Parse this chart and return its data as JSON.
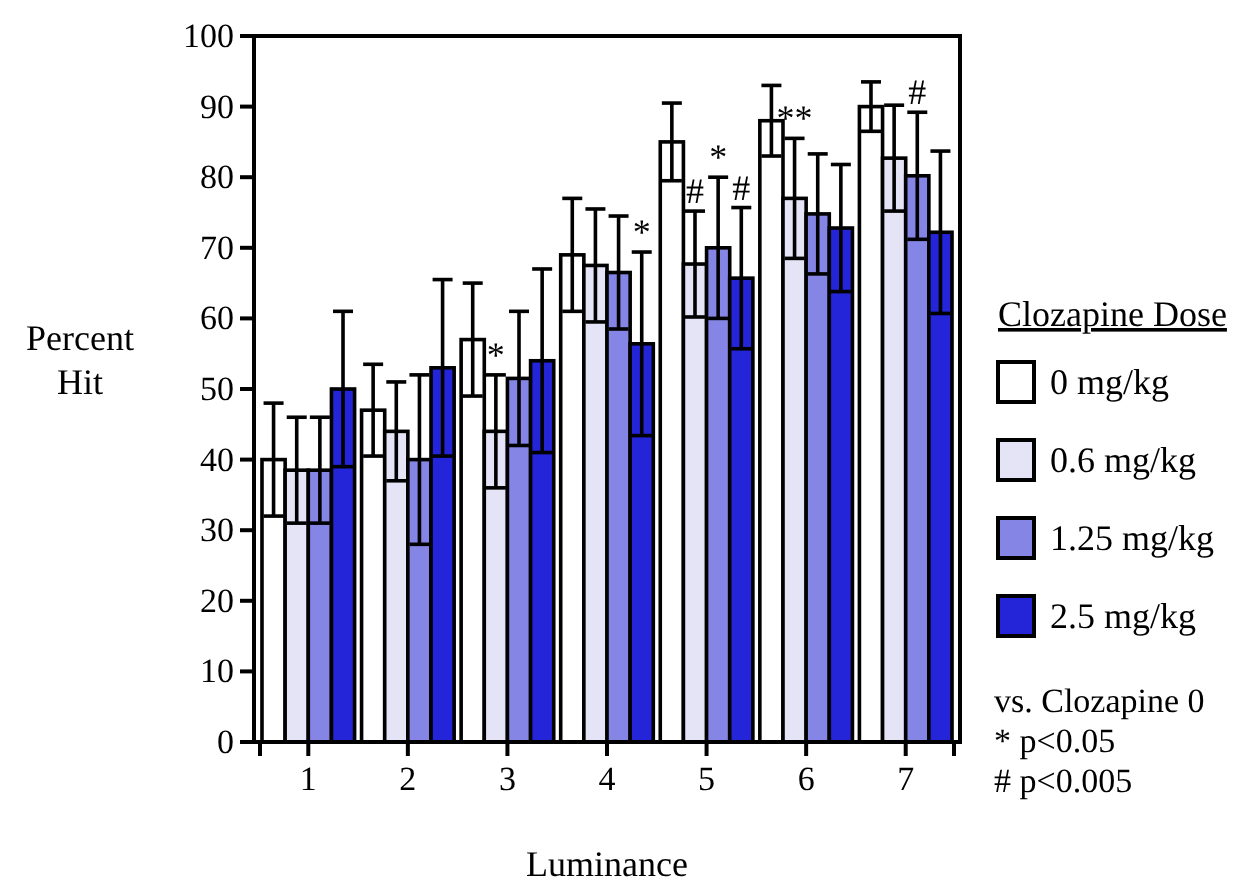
{
  "chart_data": {
    "type": "bar",
    "xlabel": "Luminance",
    "ylabel": "Percent Hit",
    "legend_title": "Clozapine Dose",
    "legend": "right",
    "categories": [
      "1",
      "2",
      "3",
      "4",
      "5",
      "6",
      "7"
    ],
    "ylim": [
      0,
      100
    ],
    "yticks": [
      0,
      10,
      20,
      30,
      40,
      50,
      60,
      70,
      80,
      90,
      100
    ],
    "grid": false,
    "series": [
      {
        "name": "0 mg/kg",
        "color": "#ffffff",
        "values": [
          40,
          47,
          57,
          69,
          85,
          88,
          90
        ],
        "errors": [
          8,
          6.5,
          8,
          8,
          5.5,
          5,
          3.5
        ]
      },
      {
        "name": "0.6 mg/kg",
        "color": "#e4e4f6",
        "values": [
          38.5,
          44,
          44,
          67.5,
          67.7,
          77,
          82.7
        ],
        "errors": [
          7.5,
          7,
          8,
          8,
          7.5,
          8.5,
          7.5
        ]
      },
      {
        "name": "1.25 mg/kg",
        "color": "#8585e6",
        "values": [
          38.5,
          40,
          51.5,
          66.5,
          70,
          74.8,
          80.2
        ],
        "errors": [
          7.5,
          12,
          9.5,
          8,
          10,
          8.5,
          9
        ]
      },
      {
        "name": "2.5 mg/kg",
        "color": "#2424d8",
        "values": [
          50,
          53,
          54,
          56.4,
          65.7,
          72.8,
          72.2
        ],
        "errors": [
          11,
          12.5,
          13,
          13,
          10,
          9,
          11.5
        ]
      }
    ],
    "annotations": [
      {
        "text": "*",
        "x": "3",
        "y": 44
      },
      {
        "text": "*",
        "x": "4",
        "y": 56.4
      },
      {
        "text": "#",
        "x": "5",
        "y": 67.7
      },
      {
        "text": "*",
        "x": "5",
        "y": 70
      },
      {
        "text": "#",
        "x": "5",
        "y": 65.7
      },
      {
        "text": "**",
        "x": "6",
        "y": 77
      },
      {
        "text": "#",
        "x": "7",
        "y": 80.2
      },
      "vs. Clozapine 0",
      "* p<0.05",
      "# p<0.005"
    ]
  }
}
